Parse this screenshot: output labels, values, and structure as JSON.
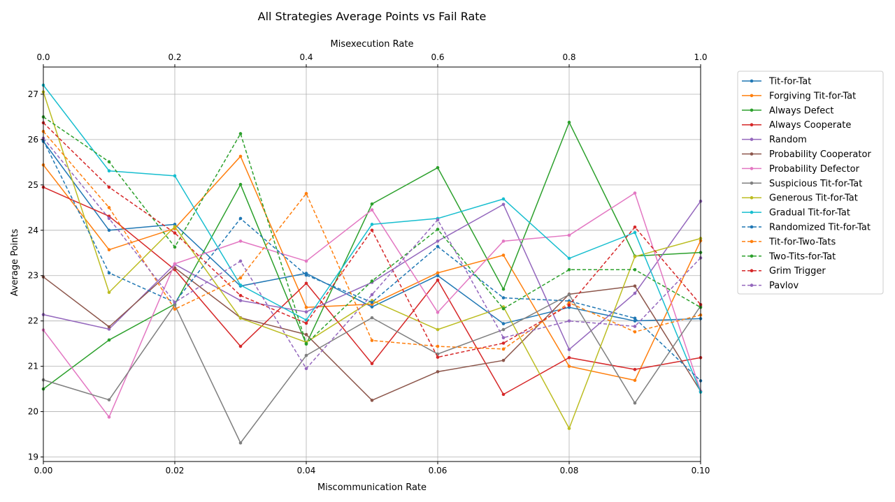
{
  "chart_data": {
    "type": "line",
    "title": "All Strategies Average Points vs Fail Rate",
    "xlabel": "Miscommunication Rate",
    "x2label": "Misexecution Rate",
    "ylabel": "Average Points",
    "xlim": [
      0,
      0.1
    ],
    "x2lim": [
      0,
      1.0
    ],
    "ylim": [
      18.9,
      27.6
    ],
    "xticks": [
      "0.00",
      "0.02",
      "0.04",
      "0.06",
      "0.08",
      "0.10"
    ],
    "x2ticks": [
      "0.0",
      "0.2",
      "0.4",
      "0.6",
      "0.8",
      "1.0"
    ],
    "yticks": [
      "19",
      "20",
      "21",
      "22",
      "23",
      "24",
      "25",
      "26",
      "27"
    ],
    "grid": true,
    "legend_position": "outside-right",
    "x": [
      0.0,
      0.01,
      0.02,
      0.03,
      0.04,
      0.05,
      0.06,
      0.07,
      0.08,
      0.09,
      0.1
    ],
    "series": [
      {
        "name": "Tit-for-Tat",
        "color": "#1f77b4",
        "dashed": false,
        "values": [
          25.96,
          24.0,
          24.13,
          22.77,
          23.05,
          22.31,
          23.0,
          21.94,
          22.3,
          22.0,
          22.05
        ]
      },
      {
        "name": "Forgiving Tit-for-Tat",
        "color": "#ff7f0e",
        "dashed": false,
        "values": [
          25.44,
          23.57,
          24.04,
          25.63,
          22.3,
          22.37,
          23.06,
          23.45,
          21.0,
          20.69,
          23.77
        ]
      },
      {
        "name": "Always Defect",
        "color": "#2ca02c",
        "dashed": false,
        "values": [
          20.5,
          21.58,
          22.37,
          25.01,
          21.49,
          24.58,
          25.38,
          22.7,
          26.38,
          23.43,
          23.51
        ]
      },
      {
        "name": "Always Cooperate",
        "color": "#d62728",
        "dashed": false,
        "values": [
          24.95,
          24.31,
          23.13,
          21.44,
          22.83,
          21.06,
          22.9,
          20.38,
          21.19,
          20.93,
          21.19
        ]
      },
      {
        "name": "Random",
        "color": "#9467bd",
        "dashed": false,
        "values": [
          22.14,
          21.82,
          23.25,
          22.45,
          22.2,
          22.85,
          23.76,
          24.57,
          21.37,
          22.61,
          24.64
        ]
      },
      {
        "name": "Probability Cooperator",
        "color": "#8c564b",
        "dashed": false,
        "values": [
          22.97,
          21.87,
          23.17,
          22.07,
          21.7,
          20.25,
          20.88,
          21.13,
          22.59,
          22.77,
          20.45
        ]
      },
      {
        "name": "Probability Defector",
        "color": "#e377c2",
        "dashed": false,
        "values": [
          21.8,
          19.88,
          23.26,
          23.76,
          23.32,
          24.45,
          22.19,
          23.76,
          23.89,
          24.82,
          20.45
        ]
      },
      {
        "name": "Suspicious Tit-for-Tat",
        "color": "#7f7f7f",
        "dashed": false,
        "values": [
          20.7,
          20.26,
          22.35,
          19.31,
          21.24,
          22.07,
          21.27,
          21.81,
          22.58,
          20.19,
          22.33
        ]
      },
      {
        "name": "Generous Tit-for-Tat",
        "color": "#bcbd22",
        "dashed": false,
        "values": [
          27.05,
          22.63,
          24.08,
          22.06,
          21.53,
          22.45,
          21.81,
          22.31,
          19.63,
          23.42,
          23.82
        ]
      },
      {
        "name": "Gradual Tit-for-Tat",
        "color": "#17becf",
        "dashed": false,
        "values": [
          27.2,
          25.31,
          25.2,
          22.79,
          22.02,
          24.13,
          24.26,
          24.69,
          23.38,
          23.95,
          20.43
        ]
      },
      {
        "name": "Randomized Tit-for-Tat",
        "color": "#1f77b4",
        "dashed": true,
        "values": [
          25.98,
          23.06,
          22.41,
          24.26,
          23.01,
          22.41,
          23.64,
          22.51,
          22.44,
          22.06,
          20.68
        ]
      },
      {
        "name": "Tit-for-Two-Tats",
        "color": "#ff7f0e",
        "dashed": true,
        "values": [
          26.18,
          24.5,
          22.26,
          22.95,
          24.81,
          21.57,
          21.44,
          21.38,
          22.4,
          21.76,
          22.13
        ]
      },
      {
        "name": "Two-Tits-for-Tat",
        "color": "#2ca02c",
        "dashed": true,
        "values": [
          26.5,
          25.51,
          23.63,
          26.13,
          21.5,
          22.88,
          24.02,
          22.27,
          23.13,
          23.13,
          22.3
        ]
      },
      {
        "name": "Grim Trigger",
        "color": "#d62728",
        "dashed": true,
        "values": [
          26.37,
          24.95,
          23.94,
          22.56,
          21.95,
          24.0,
          21.2,
          21.51,
          22.35,
          24.07,
          22.36
        ]
      },
      {
        "name": "Pavlov",
        "color": "#9467bd",
        "dashed": true,
        "values": [
          26.03,
          24.26,
          22.41,
          23.32,
          20.95,
          22.58,
          24.23,
          21.63,
          22.0,
          21.88,
          23.39
        ]
      }
    ]
  }
}
